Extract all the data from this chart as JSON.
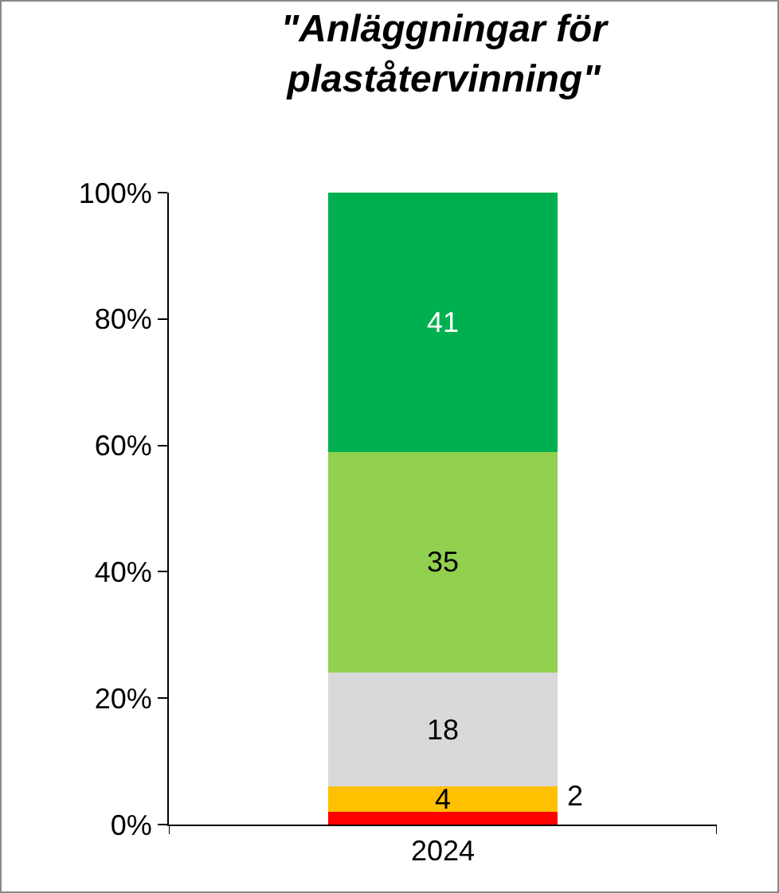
{
  "chart_data": {
    "type": "bar",
    "title": "\"Anläggningar för\nplaståtervinning\"",
    "categories": [
      "2024"
    ],
    "stacked": true,
    "series": [
      {
        "color": "#ff0000",
        "values": [
          2
        ]
      },
      {
        "color": "#ffc000",
        "values": [
          4
        ]
      },
      {
        "color": "#d9d9d9",
        "values": [
          18
        ]
      },
      {
        "color": "#92d050",
        "values": [
          35
        ]
      },
      {
        "color": "#00b050",
        "values": [
          41
        ]
      }
    ],
    "ylim": [
      0,
      100
    ],
    "yticks": [
      {
        "value": 0,
        "label": "0%"
      },
      {
        "value": 20,
        "label": "20%"
      },
      {
        "value": 40,
        "label": "40%"
      },
      {
        "value": 60,
        "label": "60%"
      },
      {
        "value": 80,
        "label": "80%"
      },
      {
        "value": 100,
        "label": "100%"
      }
    ],
    "data_labels": true,
    "grid": false
  }
}
